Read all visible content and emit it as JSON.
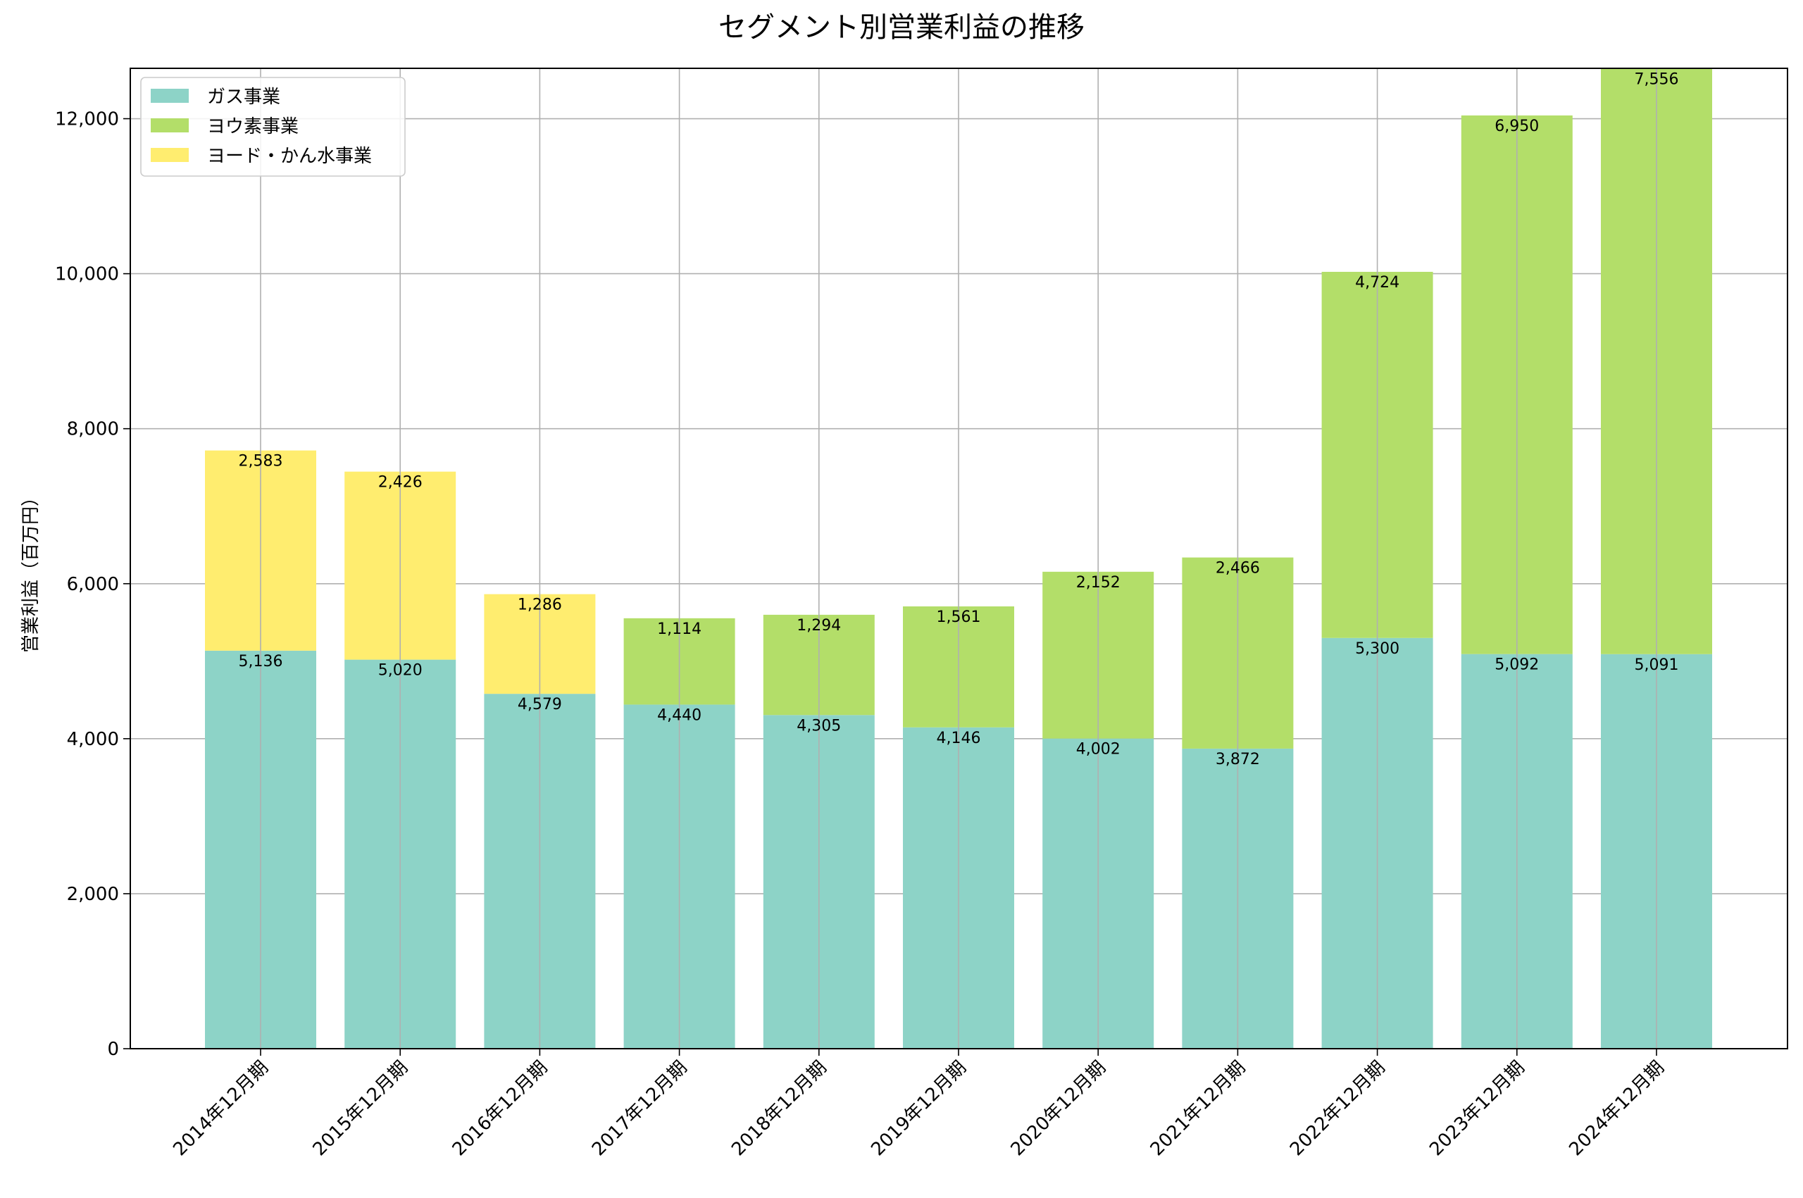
{
  "chart_data": {
    "type": "bar",
    "stacked": true,
    "title": "セグメント別営業利益の推移",
    "xlabel": "",
    "ylabel": "営業利益（百万円）",
    "ylim": [
      0,
      12650
    ],
    "yticks": [
      0,
      2000,
      4000,
      6000,
      8000,
      10000,
      12000
    ],
    "ytick_labels": [
      "0",
      "2,000",
      "4,000",
      "6,000",
      "8,000",
      "10,000",
      "12,000"
    ],
    "grid": true,
    "legend_position": "top-left",
    "categories": [
      "2014年12月期",
      "2015年12月期",
      "2016年12月期",
      "2017年12月期",
      "2018年12月期",
      "2019年12月期",
      "2020年12月期",
      "2021年12月期",
      "2022年12月期",
      "2023年12月期",
      "2024年12月期"
    ],
    "series": [
      {
        "name": "ガス事業",
        "color": "#8dd3c7",
        "values": [
          5136,
          5020,
          4579,
          4440,
          4305,
          4146,
          4002,
          3872,
          5300,
          5092,
          5091
        ],
        "labels": [
          "5,136",
          "5,020",
          "4,579",
          "4,440",
          "4,305",
          "4,146",
          "4,002",
          "3,872",
          "5,300",
          "5,092",
          "5,091"
        ]
      },
      {
        "name": "ヨウ素事業",
        "color": "#b3de69",
        "values": [
          0,
          0,
          0,
          1114,
          1294,
          1561,
          2152,
          2466,
          4724,
          6950,
          7556
        ],
        "labels": [
          "",
          "",
          "",
          "1,114",
          "1,294",
          "1,561",
          "2,152",
          "2,466",
          "4,724",
          "6,950",
          "7,556"
        ]
      },
      {
        "name": "ヨード・かん水事業",
        "color": "#ffed6f",
        "values": [
          2583,
          2426,
          1286,
          0,
          0,
          0,
          0,
          0,
          0,
          0,
          0
        ],
        "labels": [
          "2,583",
          "2,426",
          "1,286",
          "",
          "",
          "",
          "",
          "",
          "",
          "",
          ""
        ]
      }
    ]
  }
}
